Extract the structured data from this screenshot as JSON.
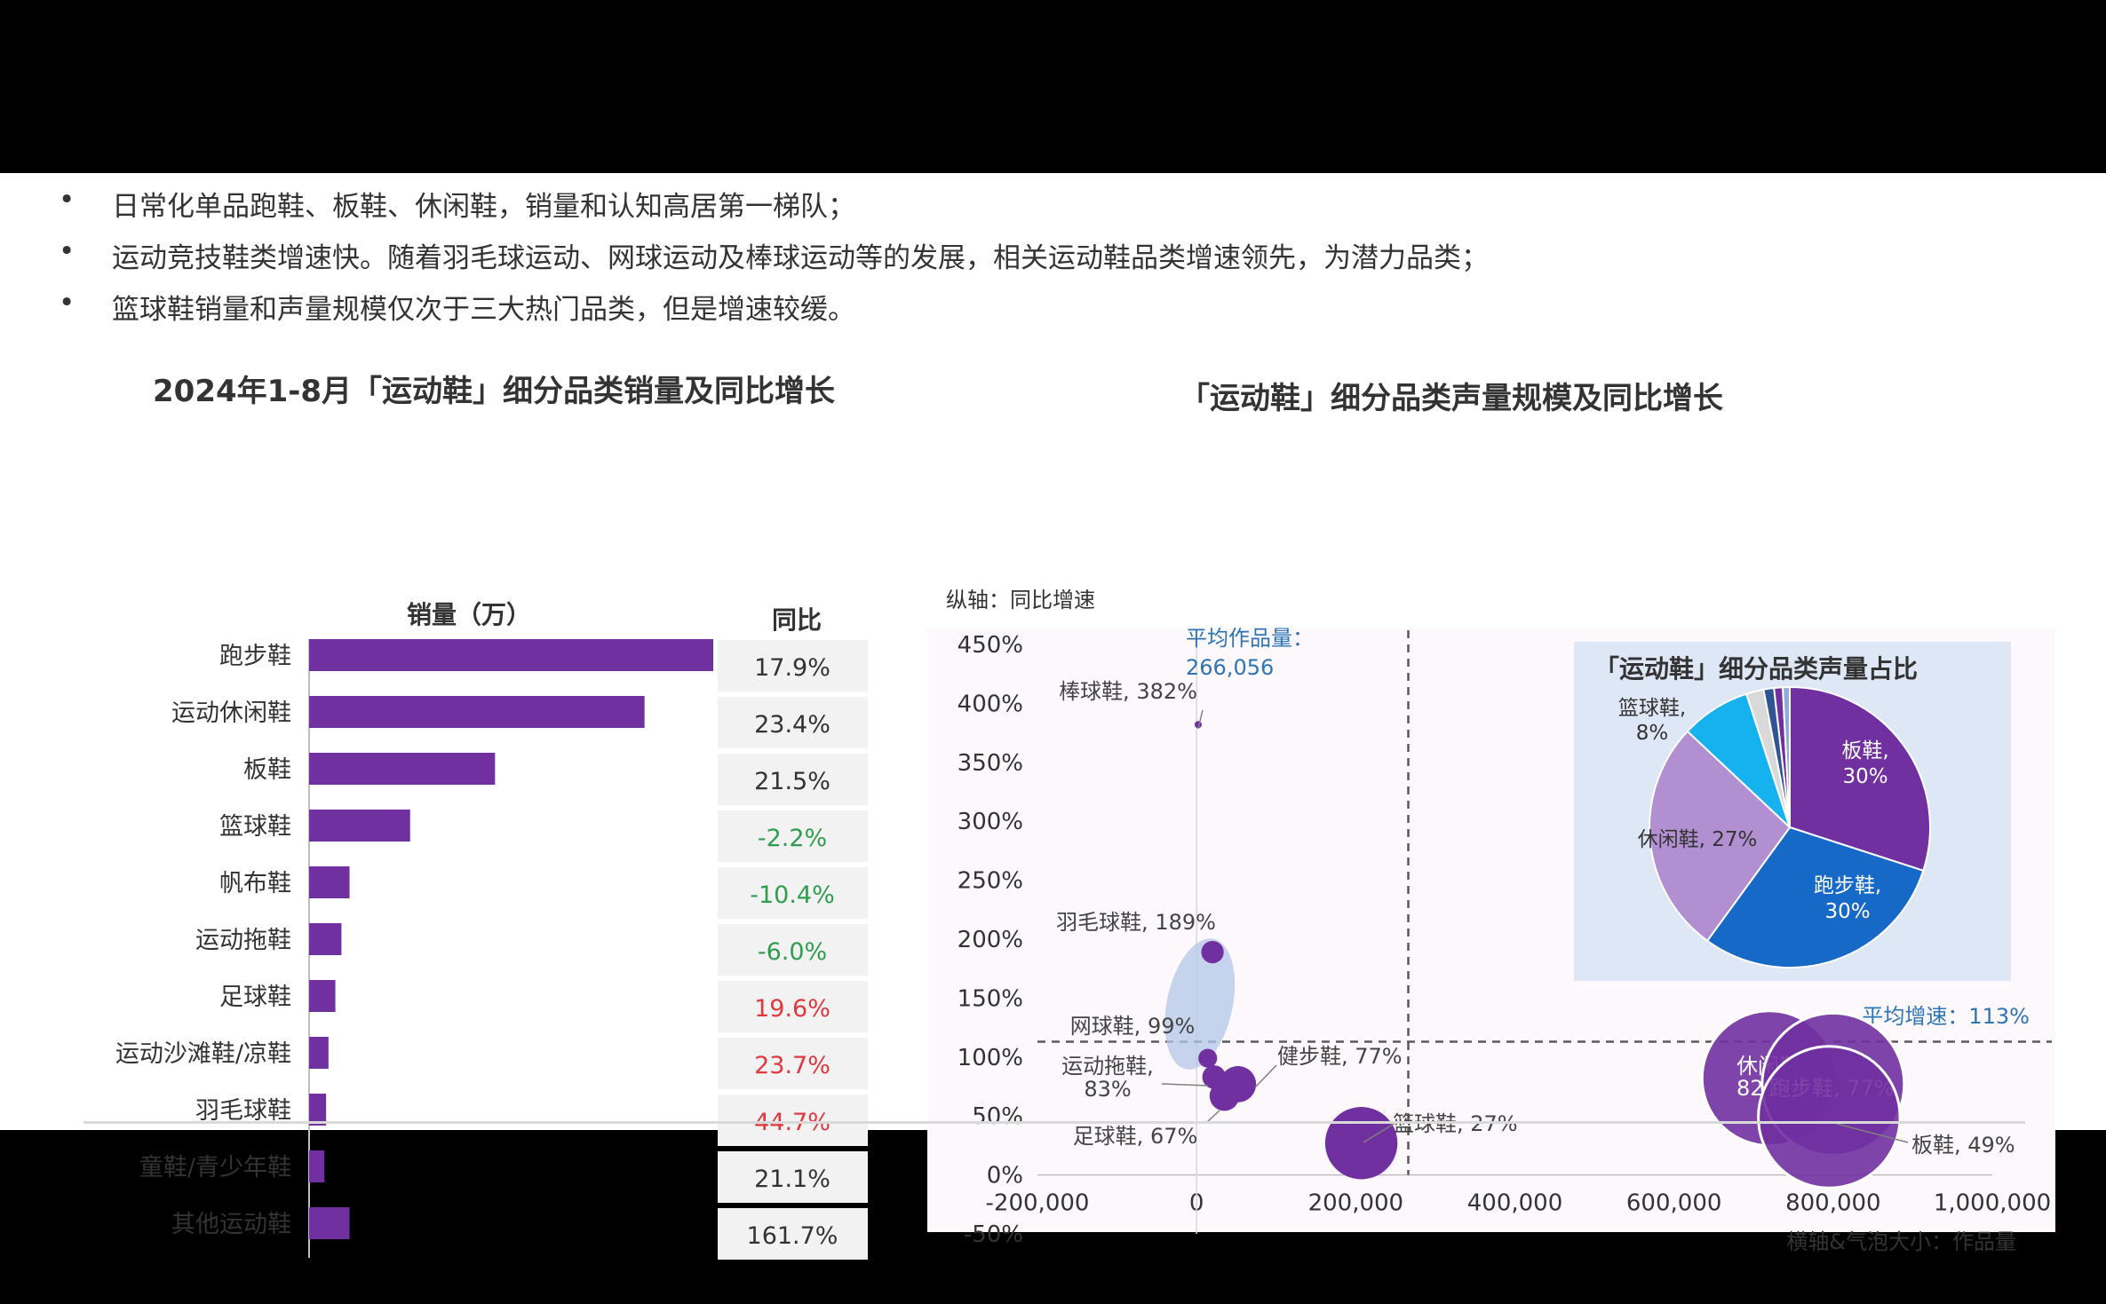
{
  "bullets": [
    "日常化单品跑鞋、板鞋、休闲鞋，销量和认知高居第一梯队；",
    "运动竞技鞋类增速快。随着羽毛球运动、网球运动及棒球运动等的发展，相关运动鞋品类增速领先，为潜力品类；",
    "篮球鞋销量和声量规模仅次于三大热门品类，但是增速较缓。"
  ],
  "bullet_marker": "•",
  "chart_data": [
    {
      "type": "bar",
      "orientation": "horizontal",
      "title": "2024年1-8月「运动鞋」细分品类销量及同比增长",
      "value_header": "销量（万）",
      "yoy_header": "同比",
      "categories": [
        "跑步鞋",
        "运动休闲鞋",
        "板鞋",
        "篮球鞋",
        "帆布鞋",
        "运动拖鞋",
        "足球鞋",
        "运动沙滩鞋/凉鞋",
        "羽毛球鞋",
        "童鞋/青少年鞋",
        "其他运动鞋"
      ],
      "values": [
        100,
        83,
        46,
        25,
        10,
        8,
        6.5,
        4.8,
        4.2,
        3.8,
        10
      ],
      "value_color": "#7030a0",
      "yoy": [
        "17.9%",
        "23.4%",
        "21.5%",
        "-2.2%",
        "-10.4%",
        "-6.0%",
        "19.6%",
        "23.7%",
        "44.7%",
        "21.1%",
        "161.7%"
      ],
      "yoy_colors": [
        "#333333",
        "#333333",
        "#333333",
        "#2e9e4e",
        "#2e9e4e",
        "#2e9e4e",
        "#e0383e",
        "#e0383e",
        "#e0383e",
        "#333333",
        "#333333"
      ]
    },
    {
      "type": "scatter",
      "title": "「运动鞋」细分品类声量规模及同比增长",
      "ylabel": "纵轴：同比增速",
      "xlabel": "横轴&气泡大小：作品量",
      "xlim": [
        -200000,
        1000000
      ],
      "ylim": [
        -50,
        450
      ],
      "xticks": [
        "-200,000",
        "0",
        "200,000",
        "400,000",
        "600,000",
        "800,000",
        "1,000,000"
      ],
      "yticks": [
        "450%",
        "400%",
        "350%",
        "300%",
        "250%",
        "200%",
        "150%",
        "100%",
        "50%",
        "0%",
        "-50%"
      ],
      "avg_x": 266056,
      "avg_x_label": "平均作品量：",
      "avg_x_value": "266,056",
      "avg_y": 113,
      "avg_y_label": "平均增速：113%",
      "points": [
        {
          "label": "棒球鞋, 382%",
          "x": 2000,
          "y": 382,
          "size": 2000
        },
        {
          "label": "羽毛球鞋, 189%",
          "x": 20000,
          "y": 189,
          "size": 20000
        },
        {
          "label": "网球鞋, 99%",
          "x": 14000,
          "y": 99,
          "size": 14000
        },
        {
          "label": "运动拖鞋,",
          "label2": "83%",
          "x": 22000,
          "y": 83,
          "size": 22000
        },
        {
          "label": "健步鞋, 77%",
          "x": 52000,
          "y": 77,
          "size": 52000
        },
        {
          "label": "足球鞋, 67%",
          "x": 35000,
          "y": 67,
          "size": 35000
        },
        {
          "label": "篮球鞋, 27%",
          "x": 207000,
          "y": 27,
          "size": 207000
        },
        {
          "label": "休闲鞋,",
          "label2": "82%",
          "x": 720000,
          "y": 82,
          "size": 720000
        },
        {
          "label": "跑步鞋, 77%",
          "x": 800000,
          "y": 77,
          "size": 800000
        },
        {
          "label": "板鞋, 49%",
          "x": 795000,
          "y": 49,
          "size": 795000
        }
      ],
      "bubble_color": "#7030a0",
      "highlight_color": "#b4c7e7"
    },
    {
      "type": "pie",
      "title": "「运动鞋」细分品类声量占比",
      "slices": [
        {
          "label": "板鞋,",
          "pct_label": "30%",
          "value": 30,
          "color": "#7030a0"
        },
        {
          "label": "跑步鞋,",
          "pct_label": "30%",
          "value": 30,
          "color": "#1669c7"
        },
        {
          "label": "休闲鞋, 27%",
          "value": 27,
          "color": "#b18fd0"
        },
        {
          "label": "篮球鞋,",
          "pct_label": "8%",
          "value": 8,
          "color": "#15b2ef"
        },
        {
          "value": 2,
          "color": "#d9d9d9"
        },
        {
          "value": 1.2,
          "color": "#2f5597"
        },
        {
          "value": 1.0,
          "color": "#7030a0"
        },
        {
          "value": 0.8,
          "color": "#8faadc"
        }
      ]
    }
  ]
}
